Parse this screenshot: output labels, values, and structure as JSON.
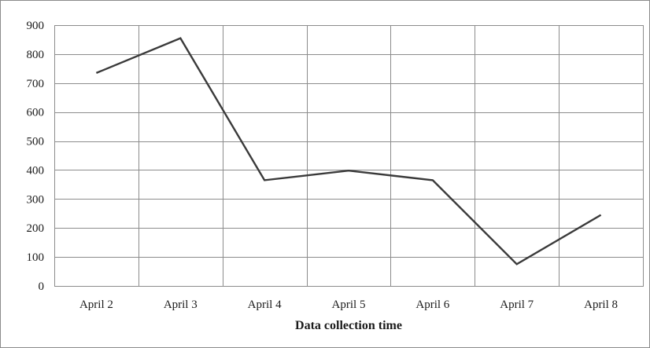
{
  "chart_data": {
    "type": "line",
    "categories": [
      "April 2",
      "April 3",
      "April 4",
      "April 5",
      "April 6",
      "April 7",
      "April 8"
    ],
    "series": [
      {
        "values": [
          735,
          855,
          365,
          398,
          365,
          75,
          245
        ]
      }
    ],
    "title": "",
    "xlabel": "Data collection time",
    "ylabel": "",
    "ylim": [
      0,
      900
    ],
    "yticks": [
      0,
      100,
      200,
      300,
      400,
      500,
      600,
      700,
      800,
      900
    ],
    "grid": true,
    "legend": "none",
    "line_color": "#3a3a3a",
    "grid_color": "#8c8c8c"
  }
}
